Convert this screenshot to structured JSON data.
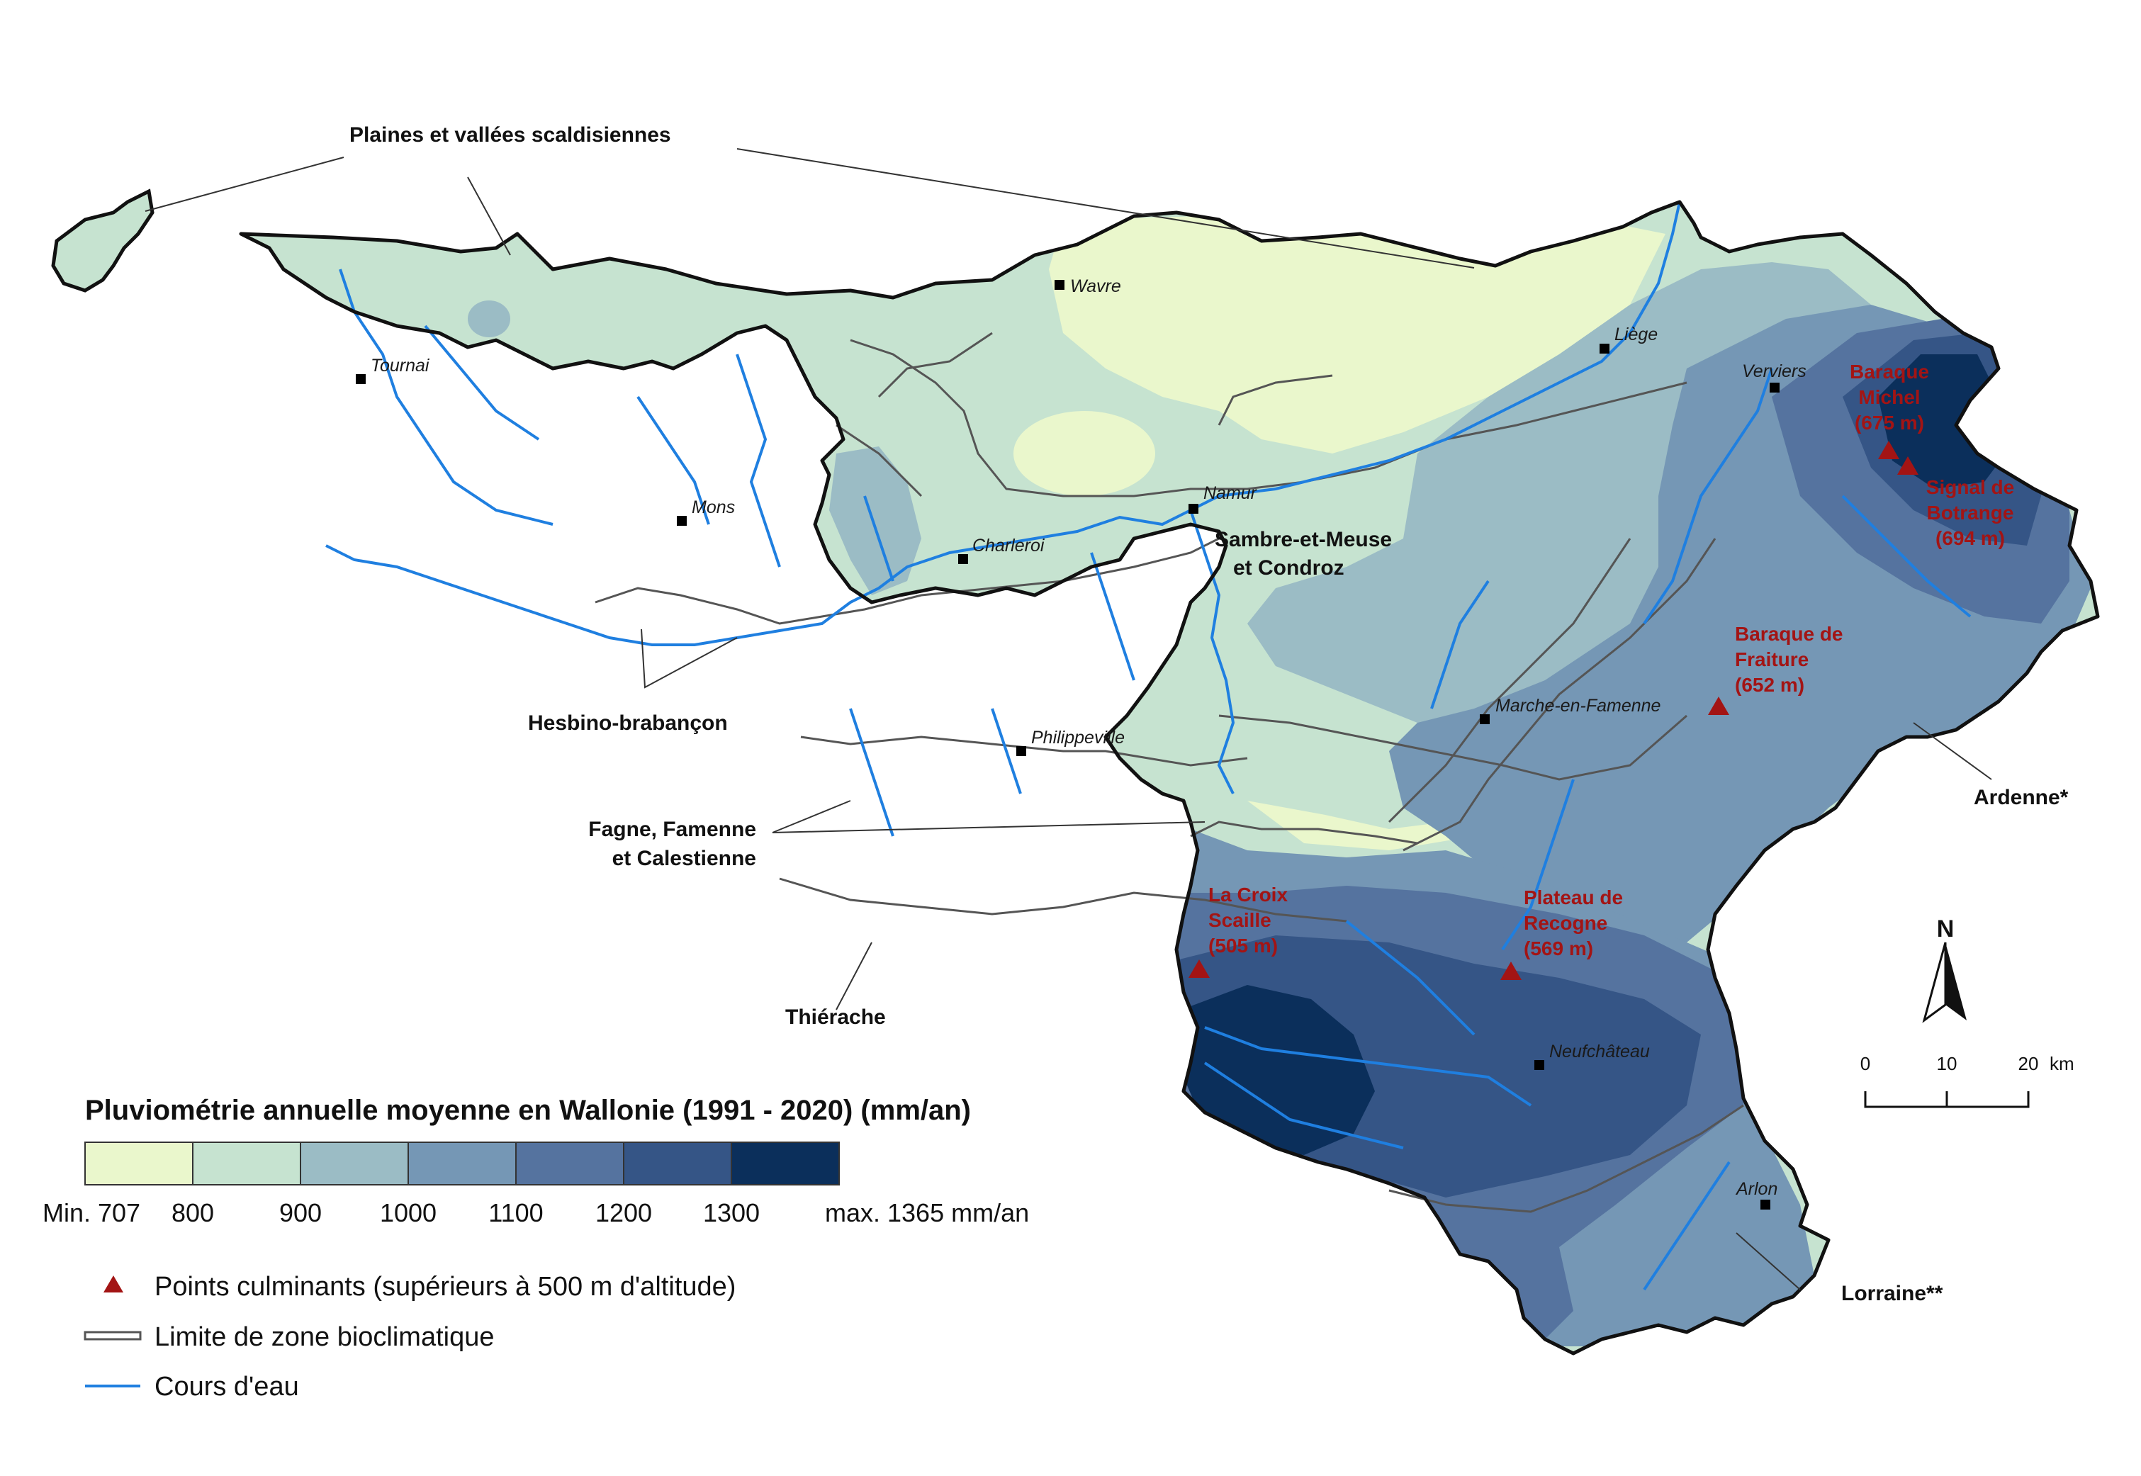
{
  "legend": {
    "title": "Pluviométrie annuelle moyenne en Wallonie (1991 - 2020) (mm/an)",
    "classes": [
      {
        "color": "#eaf7cc"
      },
      {
        "color": "#c6e3d0"
      },
      {
        "color": "#9bbcc5"
      },
      {
        "color": "#7597b5"
      },
      {
        "color": "#55739f"
      },
      {
        "color": "#355586"
      },
      {
        "color": "#0b2f5b"
      }
    ],
    "ticks": [
      "Min. 707",
      "800",
      "900",
      "1000",
      "1100",
      "1200",
      "1300",
      "max. 1365 mm/an"
    ],
    "symbols": [
      {
        "key": "peaks",
        "label": "Points culminants (supérieurs à 500 m d'altitude)",
        "color": "#a31414"
      },
      {
        "key": "zones",
        "label": "Limite de zone bioclimatique",
        "color": "#555555"
      },
      {
        "key": "rivers",
        "label": "Cours d'eau",
        "color": "#1f7fe0"
      }
    ]
  },
  "regions": [
    {
      "key": "scaldis",
      "label": "Plaines et vallées scaldisiennes"
    },
    {
      "key": "sambre1",
      "label": "Sambre-et-Meuse"
    },
    {
      "key": "sambre2",
      "label": "et Condroz"
    },
    {
      "key": "hesbino",
      "label": "Hesbino-brabançon"
    },
    {
      "key": "fagne1",
      "label": "Fagne, Famenne"
    },
    {
      "key": "fagne2",
      "label": "et Calestienne"
    },
    {
      "key": "thierache",
      "label": "Thiérache"
    },
    {
      "key": "ardenne",
      "label": "Ardenne*"
    },
    {
      "key": "lorraine",
      "label": "Lorraine**"
    }
  ],
  "cities": [
    {
      "key": "tournai",
      "label": "Tournai"
    },
    {
      "key": "wavre",
      "label": "Wavre"
    },
    {
      "key": "liege",
      "label": "Liège"
    },
    {
      "key": "verviers",
      "label": "Verviers"
    },
    {
      "key": "mons",
      "label": "Mons"
    },
    {
      "key": "namur",
      "label": "Namur"
    },
    {
      "key": "charleroi",
      "label": "Charleroi"
    },
    {
      "key": "marche",
      "label": "Marche-en-Famenne"
    },
    {
      "key": "philippeville",
      "label": "Philippeville"
    },
    {
      "key": "neufchateau",
      "label": "Neufchâteau"
    },
    {
      "key": "arlon",
      "label": "Arlon"
    }
  ],
  "peaks": [
    {
      "key": "michel",
      "lines": [
        "Baraque",
        "Michel",
        "(675 m)"
      ]
    },
    {
      "key": "botrange",
      "lines": [
        "Signal de",
        "Botrange",
        "(694 m)"
      ]
    },
    {
      "key": "fraiture",
      "lines": [
        "Baraque de",
        "Fraiture",
        "(652 m)"
      ]
    },
    {
      "key": "recogne",
      "lines": [
        "Plateau de",
        "Recogne",
        "(569 m)"
      ]
    },
    {
      "key": "croix",
      "lines": [
        "La Croix",
        "Scaille",
        "(505 m)"
      ]
    }
  ],
  "north_label": "N",
  "scale": {
    "ticks": [
      "0",
      "10",
      "20"
    ],
    "unit": "km"
  }
}
